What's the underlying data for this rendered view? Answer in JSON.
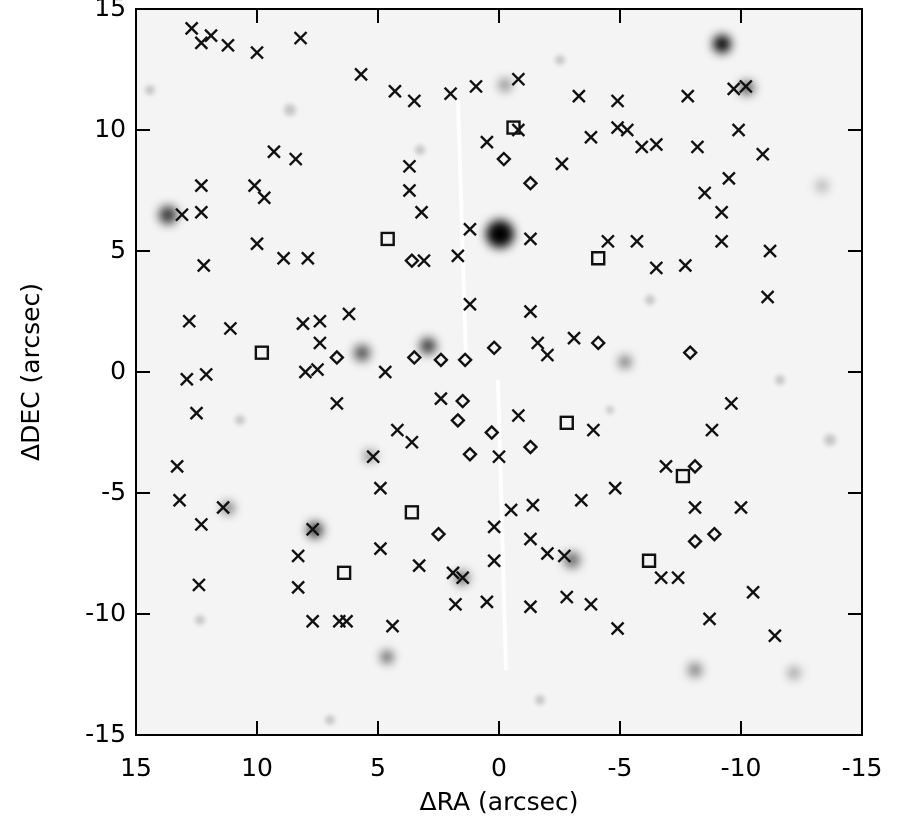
{
  "chart_data": {
    "type": "scatter",
    "x_label": "ΔRA (arcsec)",
    "y_label": "ΔDEC (arcsec)",
    "xlim": [
      15,
      -15
    ],
    "ylim": [
      -15,
      15
    ],
    "xticks": [
      15,
      10,
      5,
      0,
      -5,
      -10,
      -15
    ],
    "yticks": [
      -15,
      -10,
      -5,
      0,
      5,
      10,
      15
    ],
    "color": "#111111",
    "series": [
      {
        "marker": "x",
        "x": [
          12.7,
          11.9,
          12.3,
          11.2,
          10.0,
          8.2,
          5.7,
          4.3,
          3.5,
          2.0,
          0.95,
          -0.8,
          -3.3,
          -4.9,
          -4.9,
          -5.3,
          -5.9,
          -7.8,
          -9.7,
          -10.2,
          -9.9,
          -10.9,
          -8.2,
          -6.5,
          -2.6,
          -3.8,
          -0.8,
          0.5,
          9.3,
          8.4,
          10.1,
          3.7,
          3.7,
          3.2,
          1.2,
          -1.3,
          9.7,
          12.3,
          12.3,
          13.1,
          10.0,
          8.9,
          7.9,
          12.2,
          3.1,
          1.7,
          1.2,
          -1.3,
          -4.5,
          -5.7,
          -7.7,
          -6.5,
          -9.2,
          -11.2,
          -9.2,
          -8.5,
          -9.5,
          -11.1,
          12.8,
          11.1,
          8.1,
          7.4,
          6.2,
          7.4,
          8.0,
          7.5,
          12.9,
          12.1,
          12.5,
          6.7,
          4.7,
          -1.6,
          -3.1,
          -2.0,
          -0.8,
          2.4,
          4.2,
          3.6,
          0.0,
          -3.9,
          -9.6,
          -8.8,
          -6.9,
          -4.8,
          13.3,
          13.2,
          12.3,
          11.4,
          7.7,
          5.2,
          4.9,
          4.9,
          3.3,
          1.9,
          0.2,
          -0.5,
          -1.4,
          -1.3,
          -2.0,
          -2.7,
          -3.4,
          -7.4,
          -6.7,
          -8.1,
          -10.0,
          -3.8,
          -4.9,
          -1.3,
          1.8,
          0.5,
          1.5,
          0.2,
          12.4,
          8.3,
          8.3,
          7.7,
          6.3,
          6.6,
          4.4,
          -8.7,
          -10.5,
          -11.4,
          -2.8
        ],
        "y": [
          14.2,
          13.9,
          13.6,
          13.5,
          13.2,
          13.8,
          12.3,
          11.6,
          11.2,
          11.5,
          11.8,
          12.1,
          11.4,
          11.2,
          10.1,
          10.0,
          9.3,
          11.4,
          11.7,
          11.8,
          10.0,
          9.0,
          9.3,
          9.4,
          8.6,
          9.7,
          10.0,
          9.5,
          9.1,
          8.8,
          7.7,
          8.5,
          7.5,
          6.6,
          5.9,
          5.5,
          7.2,
          7.7,
          6.6,
          6.5,
          5.3,
          4.7,
          4.7,
          4.4,
          4.6,
          4.8,
          2.8,
          2.5,
          5.4,
          5.4,
          4.4,
          4.3,
          5.4,
          5.0,
          6.6,
          7.4,
          8.0,
          3.1,
          2.1,
          1.8,
          2.0,
          2.1,
          2.4,
          1.2,
          0.0,
          0.1,
          -0.3,
          -0.1,
          -1.7,
          -1.3,
          0.0,
          1.2,
          1.4,
          0.7,
          -1.8,
          -1.1,
          -2.4,
          -2.9,
          -3.5,
          -2.4,
          -1.3,
          -2.4,
          -3.9,
          -4.8,
          -3.9,
          -5.3,
          -6.3,
          -5.6,
          -6.5,
          -3.5,
          -4.8,
          -7.3,
          -8.0,
          -8.3,
          -6.4,
          -5.7,
          -5.5,
          -6.9,
          -7.5,
          -7.6,
          -5.3,
          -8.5,
          -8.5,
          -5.6,
          -5.6,
          -9.6,
          -10.6,
          -9.7,
          -9.6,
          -9.5,
          -8.5,
          -7.8,
          -8.8,
          -7.6,
          -8.9,
          -10.3,
          -10.3,
          -10.3,
          -10.5,
          -10.2,
          -9.1,
          -10.9,
          -9.3
        ]
      },
      {
        "marker": "diamond",
        "x": [
          -0.2,
          -1.3,
          3.6,
          6.7,
          3.5,
          2.4,
          1.4,
          0.2,
          -4.1,
          -7.9,
          1.5,
          1.7,
          0.3,
          -1.3,
          1.2,
          -8.1,
          2.5,
          -8.9,
          -8.1
        ],
        "y": [
          8.8,
          7.8,
          4.6,
          0.6,
          0.6,
          0.5,
          0.5,
          1.0,
          1.2,
          0.8,
          -1.2,
          -2.0,
          -2.5,
          -3.1,
          -3.4,
          -3.9,
          -6.7,
          -6.7,
          -7.0
        ]
      },
      {
        "marker": "square",
        "x": [
          -0.6,
          4.6,
          -4.1,
          9.8,
          -2.8,
          3.6,
          -7.6,
          6.4,
          -6.2
        ],
        "y": [
          10.1,
          5.5,
          4.7,
          0.8,
          -2.1,
          -5.8,
          -4.3,
          -8.3,
          -7.8
        ]
      }
    ]
  }
}
